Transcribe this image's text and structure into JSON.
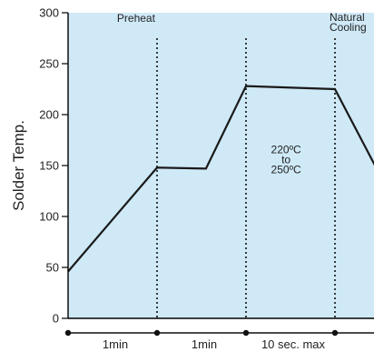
{
  "chart_data": {
    "type": "line",
    "ylabel": "Solder Temp.",
    "xlabel": "",
    "ylim": [
      0,
      300
    ],
    "yticks": [
      0,
      50,
      100,
      150,
      200,
      250,
      300
    ],
    "grid": false,
    "colors": {
      "plot_background": "#cfe9f7",
      "line": "#1a1a1a",
      "axis": "#000000"
    },
    "series": [
      {
        "x": [
          0,
          1,
          1.55,
          2,
          3,
          3.45
        ],
        "values": [
          46,
          148,
          147,
          228,
          225,
          150
        ]
      }
    ],
    "phase_boundaries": [
      1,
      2,
      3
    ],
    "annotations": [
      {
        "text": "Preheat",
        "x": 0.55,
        "y": 291
      },
      {
        "lines": [
          "Natural",
          "Cooling"
        ],
        "x": 3.0,
        "y": 292
      },
      {
        "lines": [
          "220ºC",
          "to",
          "250ºC"
        ],
        "x": 2.45,
        "y": 162
      }
    ],
    "time_axis": {
      "points": [
        0,
        1,
        2,
        3
      ],
      "durations": [
        {
          "label": "1min",
          "from": 0,
          "to": 1
        },
        {
          "label": "1min",
          "from": 1,
          "to": 2
        },
        {
          "label": "10 sec. max",
          "from": 2,
          "to": 3
        }
      ]
    }
  }
}
